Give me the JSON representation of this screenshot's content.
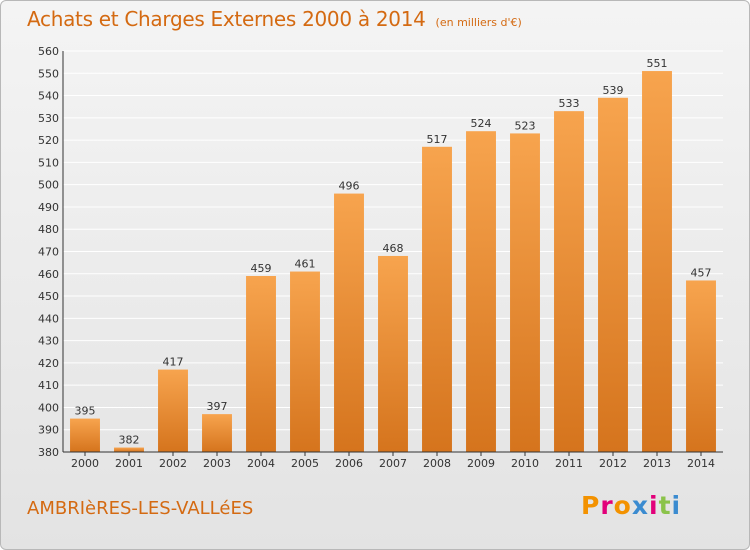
{
  "header": {
    "title": "Achats et Charges Externes 2000 à 2014",
    "unit": "(en milliers d'€)"
  },
  "footer": {
    "city": "AMBRIèRES-LES-VALLéES",
    "brand": "Proxiti",
    "brand_colors": [
      "#f39200",
      "#e2007a",
      "#f39200",
      "#3b8bd0",
      "#e2007a",
      "#8bc34a",
      "#3b8bd0"
    ]
  },
  "colors": {
    "title": "#d46a12",
    "bar_light": "#f7a44e",
    "bar_dark": "#d5741d",
    "grid": "#ffffff"
  },
  "chart_data": {
    "type": "bar",
    "title": "Achats et Charges Externes 2000 à 2014",
    "subtitle": "(en milliers d'€)",
    "categories": [
      "2000",
      "2001",
      "2002",
      "2003",
      "2004",
      "2005",
      "2006",
      "2007",
      "2008",
      "2009",
      "2010",
      "2011",
      "2012",
      "2013",
      "2014"
    ],
    "values": [
      395,
      382,
      417,
      397,
      459,
      461,
      496,
      468,
      517,
      524,
      523,
      533,
      539,
      551,
      457
    ],
    "ylim": [
      380,
      560
    ],
    "yticks": [
      380,
      390,
      400,
      410,
      420,
      430,
      440,
      450,
      460,
      470,
      480,
      490,
      500,
      510,
      520,
      530,
      540,
      550,
      560
    ],
    "grid": true,
    "data_labels": true
  }
}
